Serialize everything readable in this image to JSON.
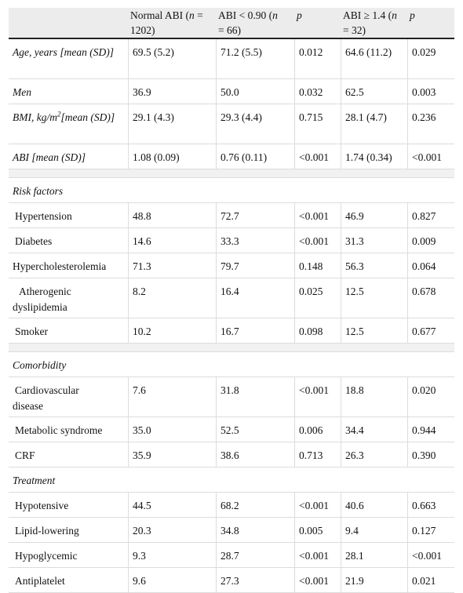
{
  "header": {
    "col1_a": "Normal ABI (",
    "col1_n": "n",
    "col1_b": " = ",
    "col1_line2": "1202)",
    "col2_a": "ABI < 0.90 (",
    "col2_n": "n",
    "col2_line2": "= 66)",
    "col3": "p",
    "col4_a": "ABI ≥ 1.4 (",
    "col4_n": "n",
    "col4_line2": " = 32)",
    "col5": "p"
  },
  "rows": [
    {
      "label": "Age, years [mean (SD)]",
      "v1": "69.5 (5.2)",
      "v2": "71.2 (5.5)",
      "p1": "0.012",
      "v3": "64.6 (11.2)",
      "p2": "0.029"
    },
    {
      "label": "Men",
      "v1": "36.9",
      "v2": "50.0",
      "p1": "0.032",
      "v3": "62.5",
      "p2": "0.003"
    },
    {
      "label_a": "BMI, kg/m",
      "label_sup": "2",
      "label_b": "[mean (SD)]",
      "v1": "29.1 (4.3)",
      "v2": "29.3 (4.4)",
      "p1": "0.715",
      "v3": "28.1 (4.7)",
      "p2": "0.236"
    },
    {
      "label": "ABI [mean (SD)]",
      "v1": "1.08 (0.09)",
      "v2": "0.76 (0.11)",
      "p1": "<0.001",
      "v3": "1.74 (0.34)",
      "p2": "<0.001"
    }
  ],
  "sections": {
    "risk": "Risk factors",
    "comorbidity": "Comorbidity",
    "treatment": "Treatment"
  },
  "risk_rows": [
    {
      "label": "Hypertension",
      "v1": "48.8",
      "v2": "72.7",
      "p1": "<0.001",
      "v3": "46.9",
      "p2": "0.827"
    },
    {
      "label": "Diabetes",
      "v1": "14.6",
      "v2": "33.3",
      "p1": "<0.001",
      "v3": "31.3",
      "p2": "0.009"
    },
    {
      "label": "Hypercholesterolemia",
      "v1": "71.3",
      "v2": "79.7",
      "p1": "0.148",
      "v3": "56.3",
      "p2": "0.064"
    },
    {
      "label_a": "Atherogenic",
      "label_b": "dyslipidemia",
      "v1": "8.2",
      "v2": "16.4",
      "p1": "0.025",
      "v3": "12.5",
      "p2": "0.678"
    },
    {
      "label": "Smoker",
      "v1": "10.2",
      "v2": "16.7",
      "p1": "0.098",
      "v3": "12.5",
      "p2": "0.677"
    }
  ],
  "comorbidity_rows": [
    {
      "label_a": "Cardiovascular",
      "label_b": "disease",
      "v1": "7.6",
      "v2": "31.8",
      "p1": "<0.001",
      "v3": "18.8",
      "p2": "0.020"
    },
    {
      "label": "Metabolic syndrome",
      "v1": "35.0",
      "v2": "52.5",
      "p1": "0.006",
      "v3": "34.4",
      "p2": "0.944"
    },
    {
      "label": "CRF",
      "v1": "35.9",
      "v2": "38.6",
      "p1": "0.713",
      "v3": "26.3",
      "p2": "0.390"
    }
  ],
  "treatment_rows": [
    {
      "label": "Hypotensive",
      "v1": "44.5",
      "v2": "68.2",
      "p1": "<0.001",
      "v3": "40.6",
      "p2": "0.663"
    },
    {
      "label": "Lipid-lowering",
      "v1": "20.3",
      "v2": "34.8",
      "p1": "0.005",
      "v3": "9.4",
      "p2": "0.127"
    },
    {
      "label": "Hypoglycemic",
      "v1": "9.3",
      "v2": "28.7",
      "p1": "<0.001",
      "v3": "28.1",
      "p2": "<0.001"
    },
    {
      "label": "Antiplatelet",
      "v1": "9.6",
      "v2": "27.3",
      "p1": "<0.001",
      "v3": "21.9",
      "p2": "0.021"
    }
  ]
}
